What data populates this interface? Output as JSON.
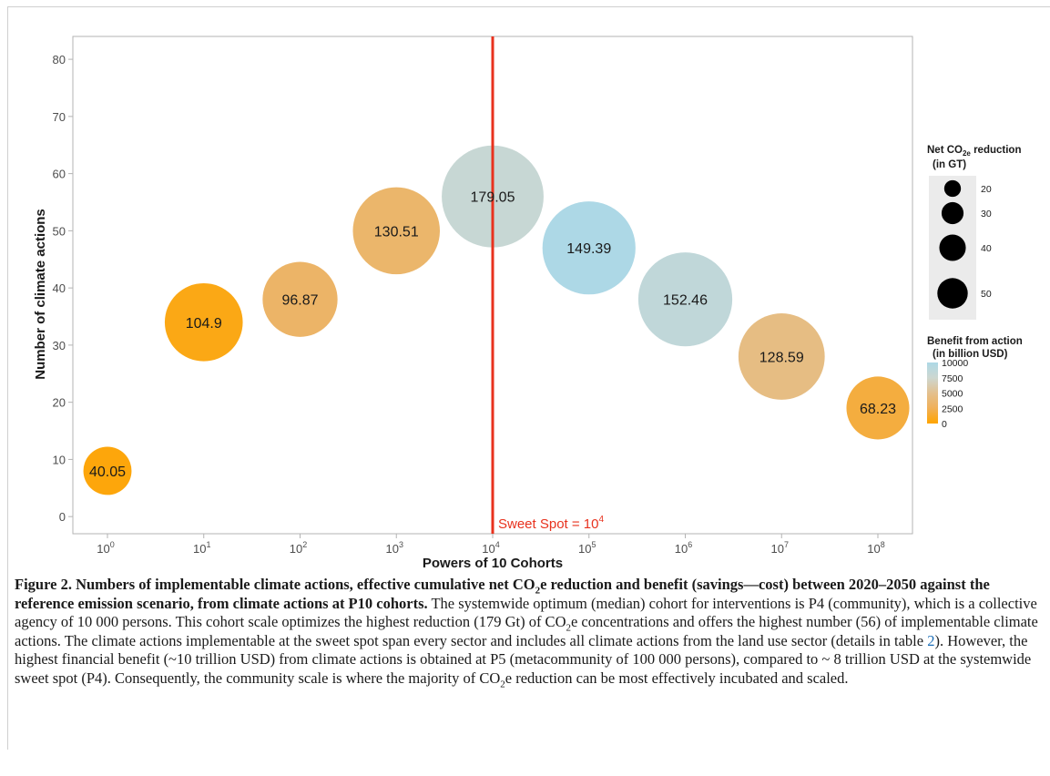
{
  "chart_data": {
    "type": "scatter",
    "subtype": "bubble",
    "xlabel": "Powers of 10 Cohorts",
    "ylabel": "Number of climate actions",
    "x_tick_exponents": [
      0,
      1,
      2,
      3,
      4,
      5,
      6,
      7,
      8
    ],
    "y_ticks": [
      0,
      10,
      20,
      30,
      40,
      50,
      60,
      70,
      80
    ],
    "ylim": [
      -3,
      84
    ],
    "points": [
      {
        "x_exp": 0,
        "y": 8,
        "net_co2e_gt": 40.05,
        "label": "40.05",
        "benefit_billion_usd": 300
      },
      {
        "x_exp": 1,
        "y": 34,
        "net_co2e_gt": 104.9,
        "label": "104.9",
        "benefit_billion_usd": 600
      },
      {
        "x_exp": 2,
        "y": 38,
        "net_co2e_gt": 96.87,
        "label": "96.87",
        "benefit_billion_usd": 3200
      },
      {
        "x_exp": 3,
        "y": 50,
        "net_co2e_gt": 130.51,
        "label": "130.51",
        "benefit_billion_usd": 3400
      },
      {
        "x_exp": 4,
        "y": 56,
        "net_co2e_gt": 179.05,
        "label": "179.05",
        "benefit_billion_usd": 8000
      },
      {
        "x_exp": 5,
        "y": 47,
        "net_co2e_gt": 149.39,
        "label": "149.39",
        "benefit_billion_usd": 10000
      },
      {
        "x_exp": 6,
        "y": 38,
        "net_co2e_gt": 152.46,
        "label": "152.46",
        "benefit_billion_usd": 8500
      },
      {
        "x_exp": 7,
        "y": 28,
        "net_co2e_gt": 128.59,
        "label": "128.59",
        "benefit_billion_usd": 4500
      },
      {
        "x_exp": 8,
        "y": 19,
        "net_co2e_gt": 68.23,
        "label": "68.23",
        "benefit_billion_usd": 1800
      }
    ],
    "reference_line": {
      "x_exp": 4,
      "color": "#e8321e",
      "label_prefix": "Sweet Spot = 10",
      "label_exp": "4"
    },
    "legend_size": {
      "title_line1": "Net CO",
      "title_sub": "2e",
      "title_line1_suffix": " reduction",
      "title_line2": "(in GT)",
      "values": [
        20,
        30,
        40,
        50
      ],
      "labels": [
        "20",
        "30",
        "40",
        "50"
      ]
    },
    "legend_color": {
      "title_line1": "Benefit from action",
      "title_line2": "(in billion USD)",
      "ticks": [
        10000,
        7500,
        5000,
        2500,
        0
      ],
      "labels": [
        "10000",
        "7500",
        "5000",
        "2500",
        "0"
      ],
      "gradient_colors": [
        "#add8e6",
        "#cdd7d0",
        "#e3c08e",
        "#f0b058",
        "#ffa500"
      ]
    },
    "grid": false,
    "legend_position": "right",
    "colors": {
      "bubble_low": "#ffa500",
      "bubble_high": "#add8e6",
      "axis": "#b3b3b3",
      "tick_text": "#4d4d4d"
    }
  },
  "caption": {
    "bold_a": "Figure 2. Numbers of implementable climate actions, effective cumulative net CO",
    "bold_sub": "2",
    "bold_b": "e reduction and benefit (savings—cost) between 2020–2050 against the reference emission scenario, from climate actions at P10 cohorts.",
    "text_a": " The systemwide optimum (median) cohort for interventions is P4 (community), which is a collective agency of 10 000 persons. This cohort scale optimizes the highest reduction (179 Gt) of CO",
    "sub_2": "2",
    "text_b": "e concentrations and offers the highest number (56) of implementable climate actions. The climate actions implementable at the sweet spot span every sector and includes all climate actions from the land use sector (details in table ",
    "table_ref": "2",
    "text_c": "). However, the highest financial benefit (~10 trillion USD) from climate actions is obtained at P5 (metacommunity of 100 000 persons), compared to ~ 8 trillion USD at the systemwide sweet spot (P4). Consequently, the community scale is where the majority of CO",
    "sub_3": "2",
    "text_d": "e reduction can be most effectively incubated and scaled."
  }
}
